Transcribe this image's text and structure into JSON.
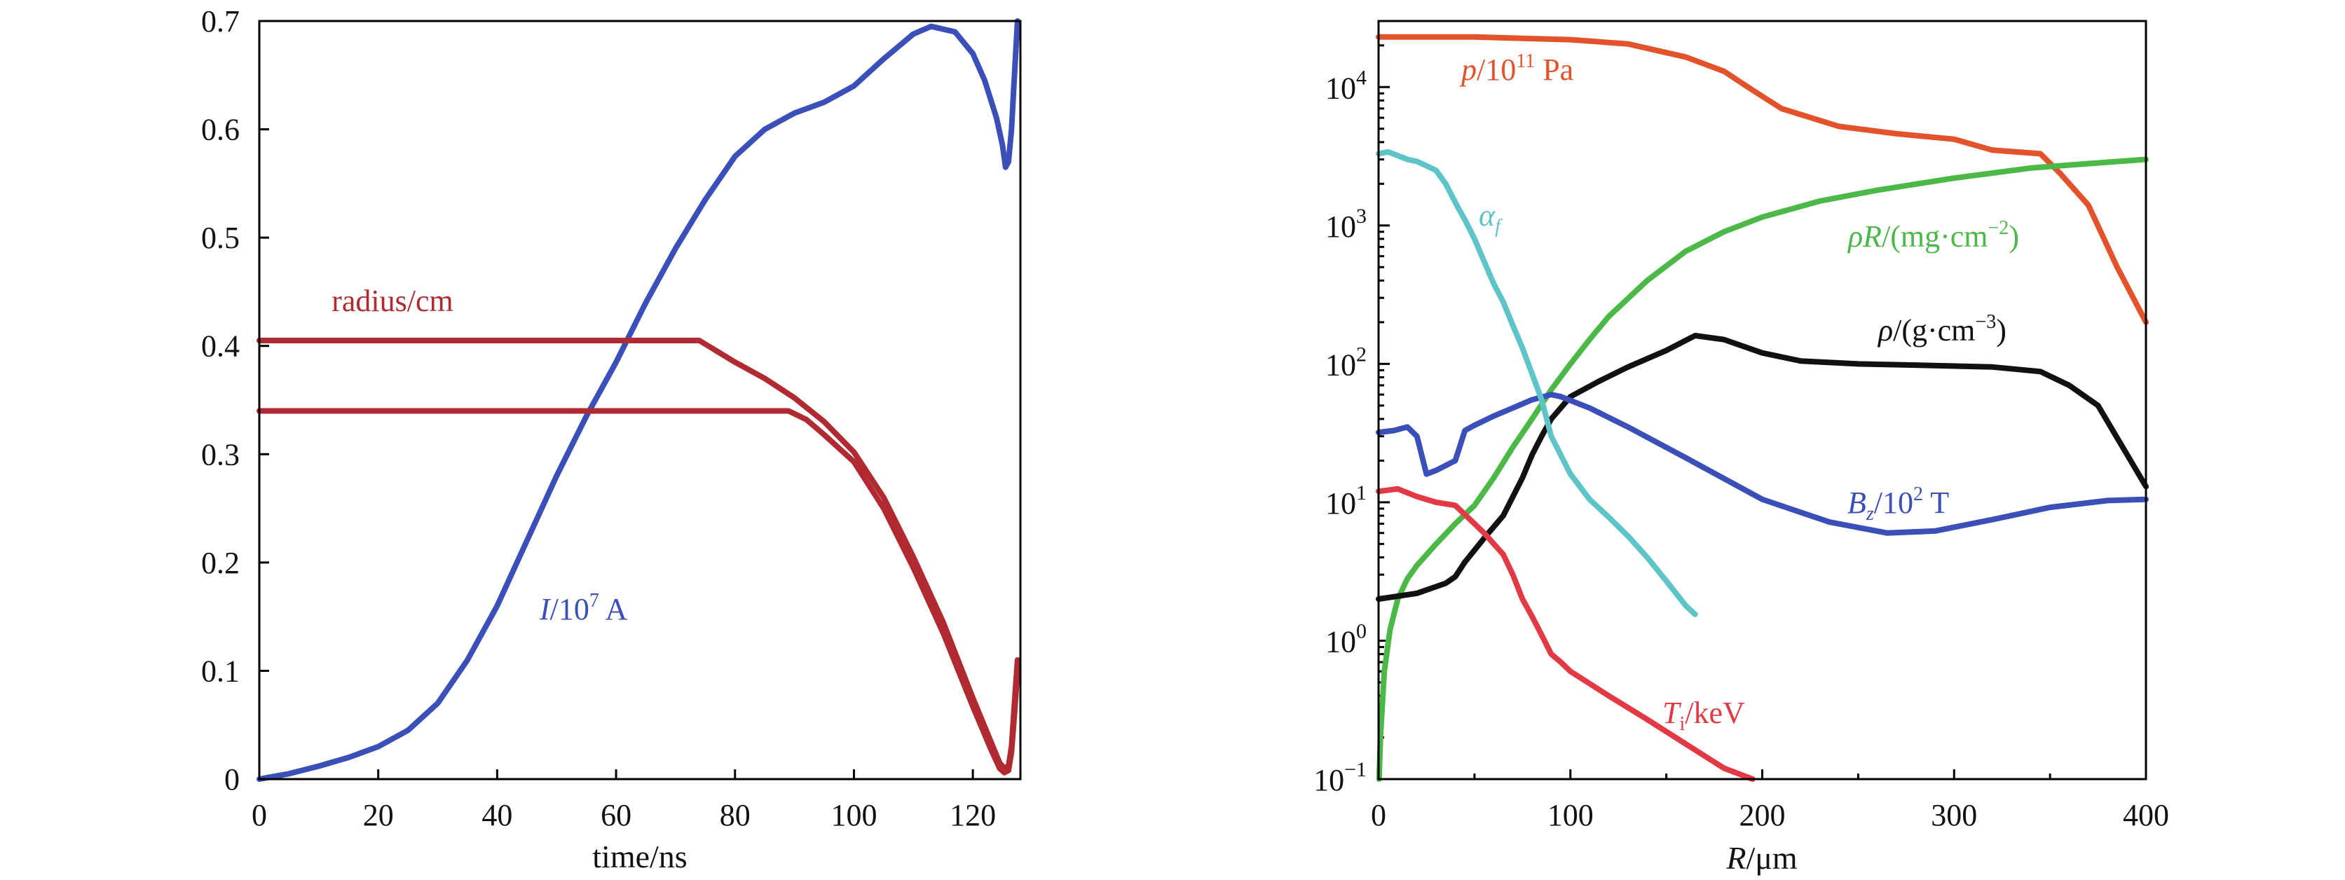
{
  "colors": {
    "current": "#3b4fb8",
    "radius": "#b02a32",
    "pressure": "#e2532c",
    "rhoR": "#4cb848",
    "density": "#111111",
    "bfield": "#3b4fb8",
    "alpha": "#5ec4c8",
    "ti": "#e23a44"
  },
  "chart_data": [
    {
      "type": "line",
      "xlabel": "time/ns",
      "ylabel": "",
      "xlim": [
        0,
        128
      ],
      "ylim": [
        0,
        0.7
      ],
      "xticks": [
        "0",
        "20",
        "40",
        "60",
        "80",
        "100",
        "120"
      ],
      "yticks": [
        "0",
        "0.1",
        "0.2",
        "0.3",
        "0.4",
        "0.5",
        "0.6",
        "0.7"
      ],
      "grid": false,
      "series": [
        {
          "name": "I/10⁷ A",
          "label_main": "I",
          "label_rest": "/10",
          "label_sup": "7",
          "label_unit": " A",
          "x": [
            0,
            5,
            10,
            15,
            20,
            25,
            30,
            35,
            40,
            45,
            50,
            55,
            60,
            65,
            70,
            75,
            80,
            85,
            90,
            95,
            100,
            105,
            110,
            113,
            117,
            120,
            122,
            124,
            125,
            125.5,
            126,
            126.5,
            127,
            127.5
          ],
          "y": [
            0,
            0.005,
            0.012,
            0.02,
            0.03,
            0.045,
            0.07,
            0.11,
            0.16,
            0.22,
            0.28,
            0.335,
            0.385,
            0.44,
            0.49,
            0.535,
            0.575,
            0.6,
            0.615,
            0.625,
            0.64,
            0.665,
            0.688,
            0.695,
            0.69,
            0.67,
            0.645,
            0.61,
            0.585,
            0.565,
            0.57,
            0.6,
            0.65,
            0.7
          ]
        },
        {
          "name": "radius/cm (outer)",
          "x": [
            0,
            74,
            80,
            85,
            90,
            95,
            100,
            105,
            110,
            115,
            120,
            123,
            124.5,
            125.3,
            126,
            126.5,
            127,
            127.5
          ],
          "y": [
            0.405,
            0.405,
            0.385,
            0.37,
            0.352,
            0.33,
            0.302,
            0.26,
            0.205,
            0.145,
            0.075,
            0.035,
            0.015,
            0.01,
            0.012,
            0.03,
            0.07,
            0.11
          ]
        },
        {
          "name": "radius/cm (inner)",
          "x": [
            0,
            89,
            92,
            95,
            100,
            105,
            110,
            115,
            120,
            123,
            124.5,
            125.3,
            126,
            126.5,
            127,
            127.5
          ],
          "y": [
            0.34,
            0.34,
            0.332,
            0.318,
            0.293,
            0.25,
            0.195,
            0.135,
            0.067,
            0.028,
            0.01,
            0.006,
            0.008,
            0.025,
            0.06,
            0.1
          ]
        }
      ],
      "annotations": {
        "radius_label": "radius/cm"
      }
    },
    {
      "type": "line",
      "xlabel": "R/μm",
      "xlabel_main": "R",
      "xlabel_rest": "/μm",
      "ylabel": "",
      "xlim": [
        0,
        400
      ],
      "ylim": [
        0.1,
        30000
      ],
      "yscale": "log",
      "xticks": [
        "0",
        "100",
        "200",
        "300",
        "400"
      ],
      "yticks": [
        {
          "base": "10",
          "exp": "−1"
        },
        {
          "base": "10",
          "exp": "0"
        },
        {
          "base": "10",
          "exp": "1"
        },
        {
          "base": "10",
          "exp": "2"
        },
        {
          "base": "10",
          "exp": "3"
        },
        {
          "base": "10",
          "exp": "4"
        }
      ],
      "grid": false,
      "series": [
        {
          "name": "p/10¹¹ Pa",
          "label_main": "p",
          "label_rest": "/10",
          "label_sup": "11",
          "label_unit": " Pa",
          "x": [
            0,
            50,
            100,
            130,
            160,
            180,
            195,
            210,
            240,
            270,
            300,
            320,
            345,
            355,
            370,
            385,
            400
          ],
          "y": [
            23000,
            23000,
            22000,
            20500,
            16500,
            13000,
            9500,
            7000,
            5200,
            4600,
            4200,
            3500,
            3300,
            2400,
            1400,
            500,
            200
          ]
        },
        {
          "name": "ρR/(mg·cm⁻²)",
          "label_main": "ρR",
          "label_rest": "/(mg·cm",
          "label_sup": "−2",
          "label_unit": ")",
          "x": [
            0.3,
            1,
            3,
            6,
            10,
            15,
            20,
            30,
            40,
            50,
            60,
            70,
            80,
            90,
            100,
            110,
            120,
            140,
            160,
            180,
            200,
            230,
            260,
            300,
            340,
            370,
            400
          ],
          "y": [
            0.1,
            0.2,
            0.6,
            1.2,
            2,
            2.8,
            3.5,
            5,
            7,
            9.5,
            15,
            25,
            40,
            65,
            100,
            150,
            220,
            400,
            650,
            900,
            1150,
            1500,
            1800,
            2200,
            2600,
            2800,
            3000
          ]
        },
        {
          "name": "ρ/(g·cm⁻³)",
          "label_main": "ρ",
          "label_rest": "/(g·cm",
          "label_sup": "−3",
          "label_unit": ")",
          "x": [
            0,
            20,
            35,
            40,
            45,
            55,
            65,
            75,
            80,
            85,
            90,
            100,
            115,
            130,
            150,
            165,
            180,
            200,
            220,
            250,
            280,
            320,
            345,
            360,
            375,
            400
          ],
          "y": [
            2,
            2.2,
            2.6,
            2.9,
            3.7,
            5.5,
            8,
            15,
            22,
            30,
            40,
            58,
            75,
            95,
            125,
            160,
            150,
            120,
            105,
            100,
            98,
            95,
            88,
            70,
            50,
            13
          ]
        },
        {
          "name": "Bz/10² T",
          "label_main": "B",
          "label_sub": "z",
          "label_rest": "/10",
          "label_sup": "2",
          "label_unit": " T",
          "x": [
            0,
            8,
            15,
            20,
            25,
            30,
            40,
            45,
            50,
            60,
            70,
            80,
            90,
            95,
            110,
            130,
            160,
            200,
            235,
            265,
            290,
            320,
            350,
            380,
            400
          ],
          "y": [
            32,
            33,
            35,
            30,
            16,
            17,
            20,
            33,
            36,
            42,
            48,
            55,
            60,
            58,
            48,
            35,
            21,
            10.5,
            7.2,
            6,
            6.2,
            7.5,
            9.2,
            10.3,
            10.5
          ]
        },
        {
          "name": "αf",
          "label_main": "α",
          "label_sub": "f",
          "x": [
            0,
            5,
            10,
            15,
            20,
            25,
            30,
            35,
            42,
            45,
            50,
            55,
            60,
            65,
            70,
            75,
            80,
            85,
            90,
            100,
            110,
            120,
            130,
            140,
            150,
            160,
            165
          ],
          "y": [
            3300,
            3400,
            3200,
            3000,
            2900,
            2700,
            2500,
            2000,
            1300,
            1100,
            800,
            550,
            380,
            280,
            190,
            130,
            85,
            55,
            30,
            16,
            10.5,
            7.8,
            5.7,
            4,
            2.7,
            1.8,
            1.55
          ]
        },
        {
          "name": "Ti/keV",
          "label_main": "T",
          "label_sub": "i",
          "label_rest": "/keV",
          "x": [
            0,
            10,
            20,
            30,
            40,
            50,
            55,
            65,
            70,
            75,
            80,
            85,
            90,
            95,
            100,
            120,
            140,
            160,
            180,
            195
          ],
          "y": [
            12,
            12.5,
            11,
            10,
            9.5,
            7,
            6,
            4.2,
            3,
            2,
            1.5,
            1.1,
            0.8,
            0.7,
            0.6,
            0.4,
            0.27,
            0.18,
            0.12,
            0.1
          ]
        }
      ]
    }
  ]
}
